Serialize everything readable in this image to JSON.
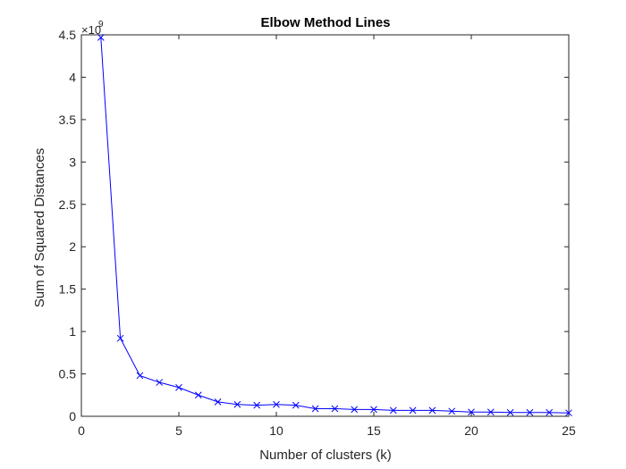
{
  "chart_data": {
    "type": "line",
    "title": "Elbow Method Lines",
    "xlabel": "Number of clusters (k)",
    "ylabel": "Sum of Squared Distances",
    "xlim": [
      0,
      25
    ],
    "ylim": [
      0,
      4.5
    ],
    "y_exponent_base": "×10",
    "y_exponent_power": "9",
    "xticks": [
      0,
      5,
      10,
      15,
      20,
      25
    ],
    "xtick_labels": [
      "0",
      "5",
      "10",
      "15",
      "20",
      "25"
    ],
    "yticks": [
      0,
      0.5,
      1,
      1.5,
      2,
      2.5,
      3,
      3.5,
      4,
      4.5
    ],
    "ytick_labels": [
      "0",
      "0.5",
      "1",
      "1.5",
      "2",
      "2.5",
      "3",
      "3.5",
      "4",
      "4.5"
    ],
    "grid": false,
    "series": [
      {
        "color": "#0000ff",
        "marker": "x",
        "x": [
          1,
          2,
          3,
          4,
          5,
          6,
          7,
          8,
          9,
          10,
          11,
          12,
          13,
          14,
          15,
          16,
          17,
          18,
          19,
          20,
          21,
          22,
          23,
          24,
          25
        ],
        "y": [
          4.47,
          0.92,
          0.48,
          0.4,
          0.34,
          0.25,
          0.17,
          0.14,
          0.13,
          0.14,
          0.13,
          0.09,
          0.09,
          0.08,
          0.08,
          0.07,
          0.07,
          0.07,
          0.06,
          0.05,
          0.05,
          0.045,
          0.045,
          0.045,
          0.04
        ]
      }
    ]
  }
}
